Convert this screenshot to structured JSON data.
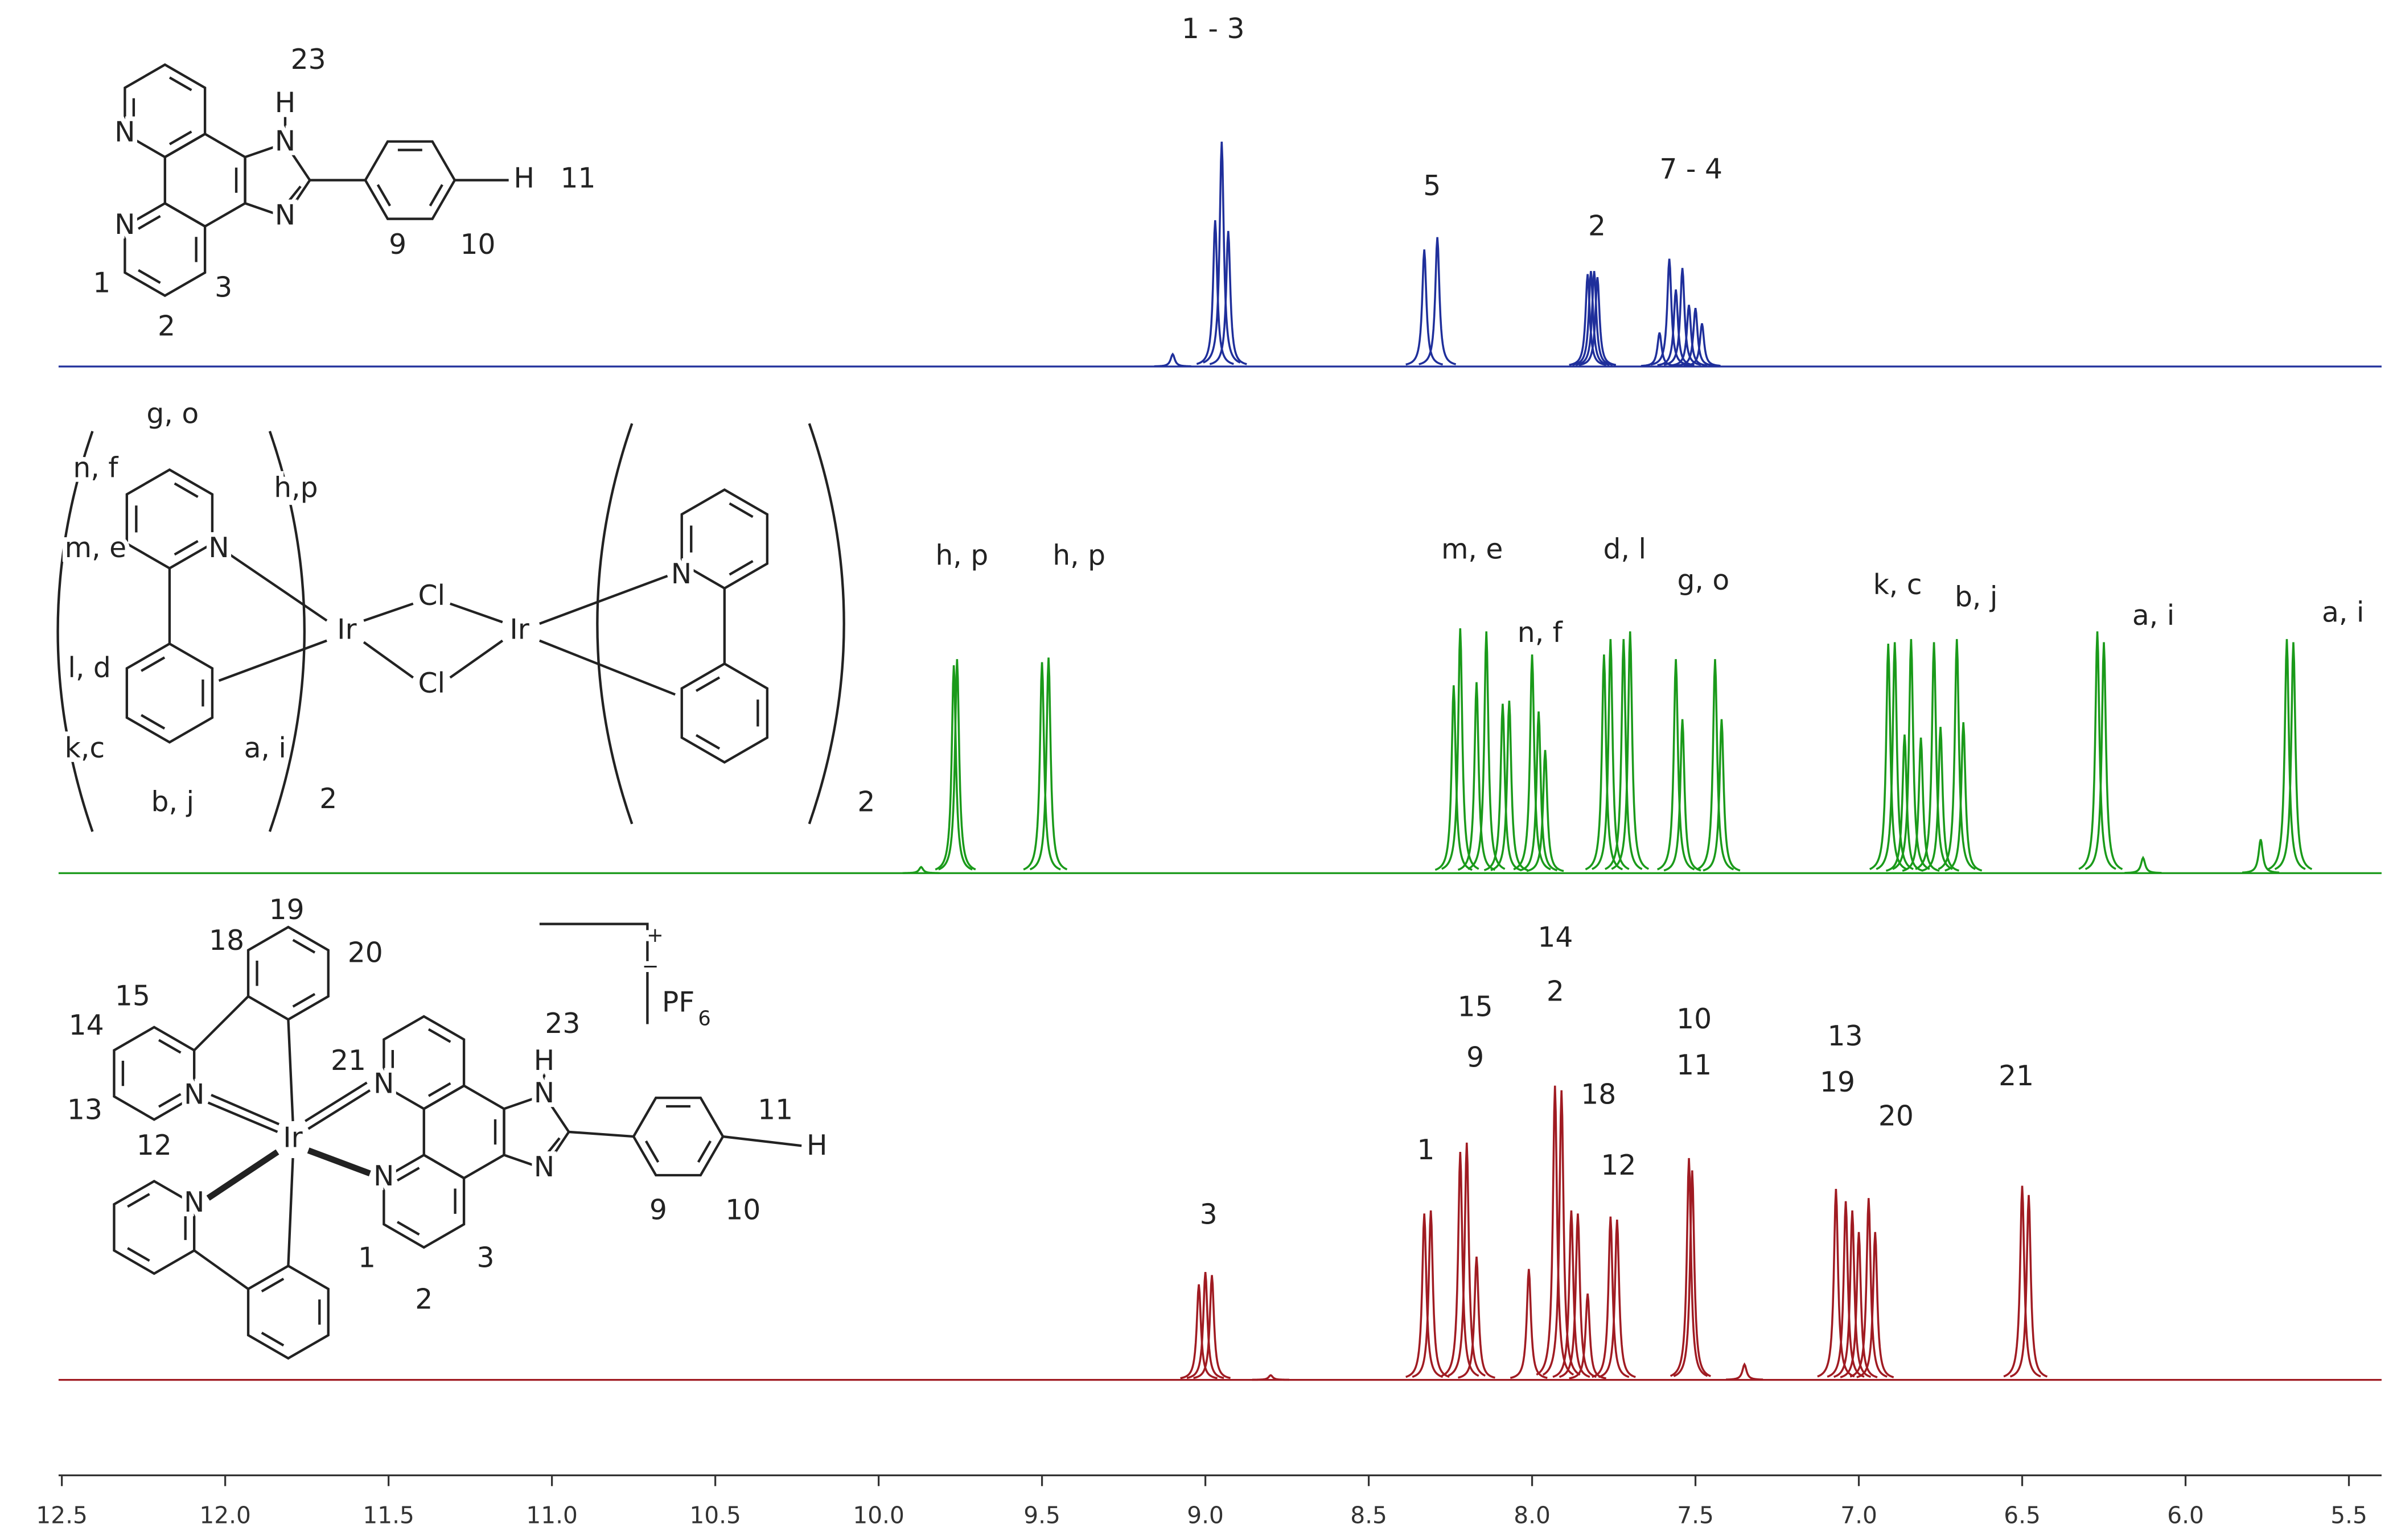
{
  "chart_data": {
    "type": "line",
    "xlim": [
      12.51,
      5.4
    ],
    "xticks": [
      12.5,
      {
        "value": 12,
        "label": "12.0"
      },
      11.5,
      {
        "value": 11,
        "label": "11.0"
      },
      10.5,
      {
        "value": 10,
        "label": "10.0"
      },
      9.5,
      {
        "value": 9,
        "label": "9.0"
      },
      8.5,
      {
        "value": 8,
        "label": "8.0"
      },
      7.5,
      {
        "value": 7,
        "label": "7.0"
      },
      6.5,
      {
        "value": 6,
        "label": "6.0"
      },
      5.5
    ],
    "series": [
      {
        "color": "#1f2f9b",
        "x": [
          9.1,
          8.97,
          8.95,
          8.93,
          8.33,
          8.29,
          7.83,
          7.82,
          7.81,
          7.8,
          7.61,
          7.58,
          7.56,
          7.54,
          7.52,
          7.5,
          7.48
        ],
        "values": [
          8,
          95,
          146,
          88,
          76,
          84,
          60,
          62,
          62,
          58,
          22,
          70,
          50,
          64,
          40,
          38,
          28
        ]
      },
      {
        "color": "#1a9a1a",
        "x": [
          9.87,
          9.77,
          9.76,
          9.5,
          9.48,
          8.24,
          8.22,
          8.17,
          8.14,
          8.09,
          8.07,
          8.0,
          7.98,
          7.96,
          7.78,
          7.76,
          7.72,
          7.7,
          7.56,
          7.54,
          7.44,
          7.42,
          6.91,
          6.89,
          6.86,
          6.84,
          6.81,
          6.77,
          6.75,
          6.7,
          6.68,
          6.27,
          6.25,
          6.13,
          5.77,
          5.69,
          5.67
        ],
        "values": [
          4,
          135,
          139,
          137,
          140,
          122,
          159,
          124,
          157,
          110,
          112,
          142,
          105,
          80,
          142,
          152,
          152,
          157,
          139,
          100,
          139,
          100,
          149,
          150,
          90,
          152,
          88,
          150,
          95,
          152,
          98,
          157,
          150,
          10,
          22,
          152,
          150
        ]
      },
      {
        "color": "#a01b22",
        "x": [
          9.02,
          9.0,
          8.98,
          8.8,
          8.33,
          8.31,
          8.22,
          8.2,
          8.17,
          8.01,
          7.93,
          7.91,
          7.88,
          7.86,
          7.83,
          7.76,
          7.74,
          7.52,
          7.51,
          7.35,
          7.07,
          7.04,
          7.02,
          7.0,
          6.97,
          6.95,
          6.5,
          6.48
        ],
        "values": [
          62,
          70,
          68,
          3,
          108,
          110,
          148,
          154,
          80,
          72,
          191,
          188,
          110,
          108,
          56,
          106,
          104,
          144,
          136,
          10,
          124,
          116,
          110,
          96,
          118,
          96,
          126,
          120
        ]
      }
    ],
    "annotations": [
      "1 - 3",
      "5",
      "2",
      "7 - 4",
      "h, p",
      "h, p",
      "m, e",
      "n, f",
      "d, l",
      "g, o",
      "k, c",
      "b, j",
      "a, i",
      "a, i",
      "3",
      "1",
      "15",
      "9",
      "14",
      "2",
      "18",
      "12",
      "10",
      "11",
      "13",
      "19",
      "20",
      "21"
    ]
  },
  "structures": [
    {
      "labels": [
        "23",
        "H",
        "N",
        "N",
        "N",
        "N",
        "H",
        "11",
        "9",
        "10",
        "1",
        "2",
        "3"
      ]
    },
    {
      "labels": [
        "g, o",
        "n, f",
        "h,p",
        "N",
        "m, e",
        "Ir",
        "Cl",
        "Cl",
        "Ir",
        "N",
        "l, d",
        "k,c",
        "a, i",
        "b, j",
        "2",
        "2"
      ]
    },
    {
      "labels": [
        "19",
        "18",
        "20",
        "15",
        "21",
        "14",
        "N",
        "13",
        "12",
        "Ir",
        "N",
        "N",
        "N",
        "23",
        "H",
        "N",
        "N",
        "11",
        "H",
        "9",
        "10",
        "1",
        "3",
        "2",
        "+",
        "−",
        "PF",
        "6"
      ]
    }
  ]
}
